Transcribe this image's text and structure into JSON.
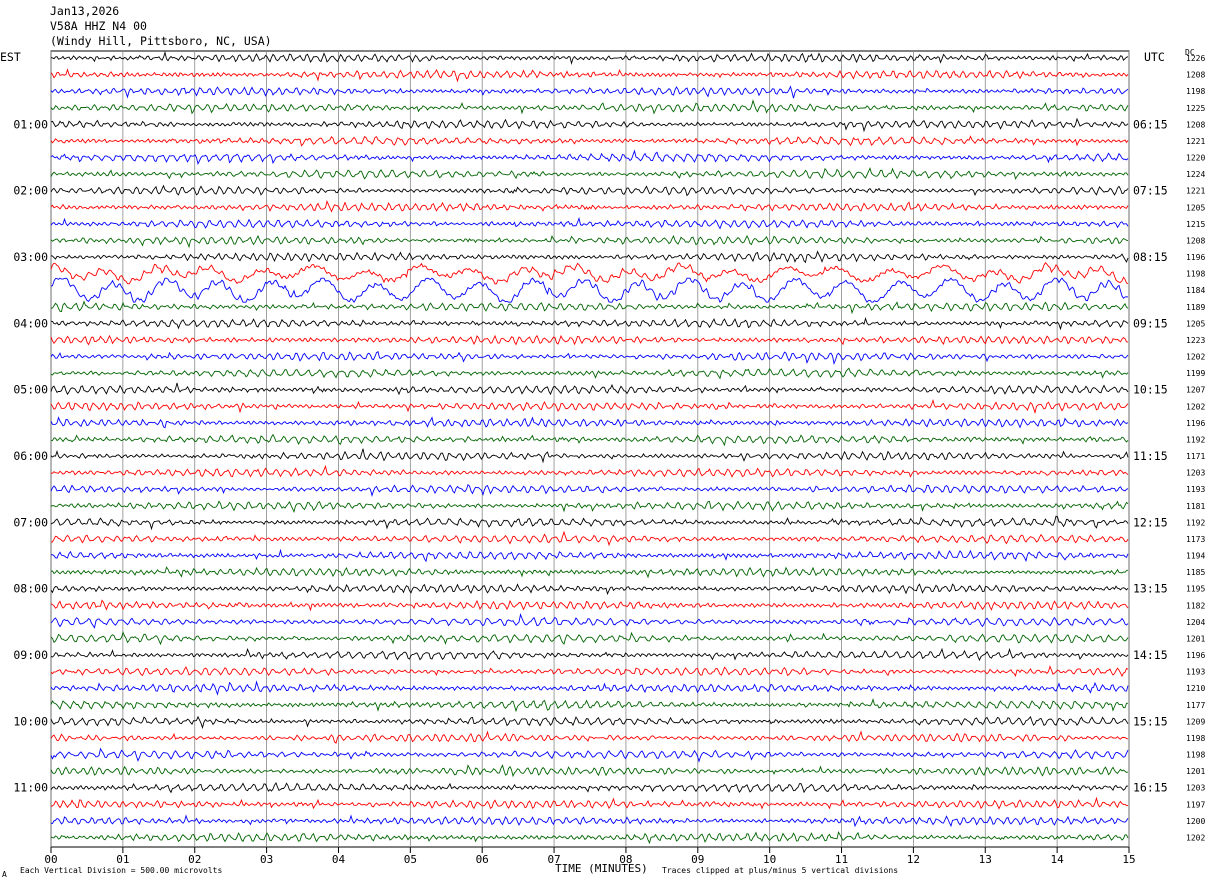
{
  "header": {
    "date": "Jan13,2026",
    "station": "V58A HHZ N4 00",
    "location": "(Windy Hill, Pittsboro, NC, USA)"
  },
  "labels": {
    "left_tz": "EST",
    "right_tz": "UTC",
    "dc": "DC"
  },
  "footer": {
    "scale": "Each Vertical Division = 500.00 microvolts",
    "clip": "Traces clipped at plus/minus 5 vertical divisions",
    "corner": "A"
  },
  "chart_data": {
    "type": "line",
    "title": "",
    "xlabel": "TIME (MINUTES)",
    "x_ticks": [
      "00",
      "01",
      "02",
      "03",
      "04",
      "05",
      "06",
      "07",
      "08",
      "09",
      "10",
      "11",
      "12",
      "13",
      "14",
      "15"
    ],
    "xlim": [
      0,
      15
    ],
    "trace_colors": [
      "#000000",
      "#ff0000",
      "#0000ff",
      "#006400"
    ],
    "left_hour_labels": [
      "01:00",
      "02:00",
      "03:00",
      "04:00",
      "05:00",
      "06:00",
      "07:00",
      "08:00",
      "09:00",
      "10:00",
      "11:00"
    ],
    "right_hour_labels": [
      "06:15",
      "07:15",
      "08:15",
      "09:15",
      "10:15",
      "11:15",
      "12:15",
      "13:15",
      "14:15",
      "15:15",
      "16:15"
    ],
    "dc_offsets": [
      1226,
      1208,
      1198,
      1225,
      1208,
      1221,
      1220,
      1224,
      1221,
      1205,
      1215,
      1208,
      1196,
      1198,
      1184,
      1189,
      1205,
      1223,
      1202,
      1199,
      1207,
      1202,
      1196,
      1192,
      1171,
      1203,
      1193,
      1181,
      1192,
      1173,
      1194,
      1185,
      1195,
      1182,
      1204,
      1201,
      1196,
      1193,
      1210,
      1177,
      1209,
      1198,
      1198,
      1201,
      1203,
      1197,
      1200,
      1202
    ]
  }
}
